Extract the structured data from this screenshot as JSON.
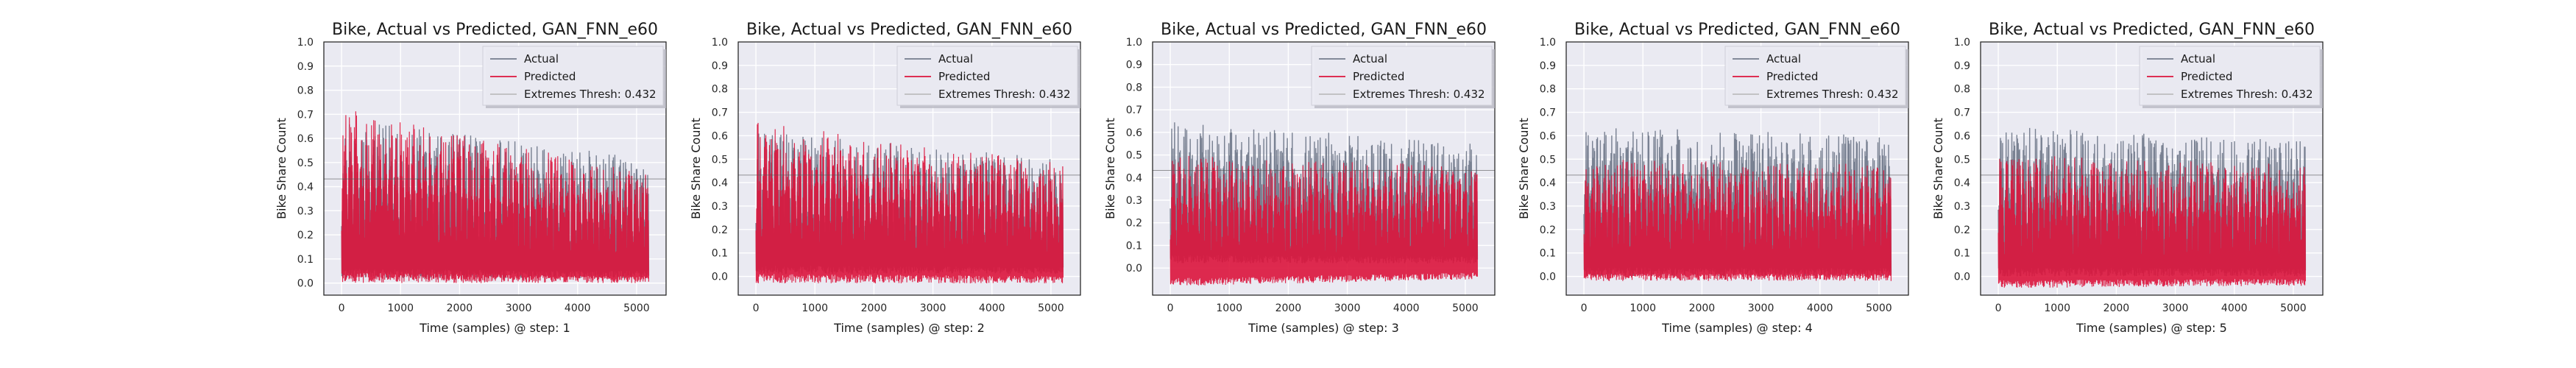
{
  "colors": {
    "actual": "#737b8c",
    "predicted": "#dc143c",
    "threshold": "#555555",
    "plot_bg": "#eaeaf2",
    "grid": "#ffffff"
  },
  "chart_data": [
    {
      "type": "line",
      "title": "Bike, Actual vs Predicted, GAN_FNN_e60",
      "xlabel": "Time (samples) @ step: 1",
      "ylabel": "Bike Share Count",
      "xlim": [
        -300,
        5500
      ],
      "ylim": [
        -0.05,
        1.0
      ],
      "xticks": [
        0,
        1000,
        2000,
        3000,
        4000,
        5000
      ],
      "yticks": [
        0.0,
        0.1,
        0.2,
        0.3,
        0.4,
        0.5,
        0.6,
        0.7,
        0.8,
        0.9,
        1.0
      ],
      "grid": true,
      "legend": "top-right",
      "legend_entries": [
        "Actual",
        "Predicted",
        "Extremes Thresh: 0.432"
      ],
      "threshold": 0.432,
      "series": [
        {
          "name": "Actual",
          "x": [
            0,
            5200
          ],
          "y_min": [
            0.02,
            0.02
          ],
          "y_max": [
            0.68,
            0.52
          ]
        },
        {
          "name": "Predicted",
          "x": [
            0,
            5200
          ],
          "y_min": [
            0.0,
            0.0
          ],
          "y_max": [
            0.73,
            0.45
          ]
        }
      ]
    },
    {
      "type": "line",
      "title": "Bike, Actual vs Predicted, GAN_FNN_e60",
      "xlabel": "Time (samples) @ step: 2",
      "ylabel": "Bike Share Count",
      "xlim": [
        -300,
        5500
      ],
      "ylim": [
        -0.08,
        1.0
      ],
      "xticks": [
        0,
        1000,
        2000,
        3000,
        4000,
        5000
      ],
      "yticks": [
        0.0,
        0.1,
        0.2,
        0.3,
        0.4,
        0.5,
        0.6,
        0.7,
        0.8,
        0.9,
        1.0
      ],
      "grid": true,
      "legend": "top-right",
      "legend_entries": [
        "Actual",
        "Predicted",
        "Extremes Thresh: 0.432"
      ],
      "threshold": 0.432,
      "series": [
        {
          "name": "Actual",
          "x": [
            0,
            5200
          ],
          "y_min": [
            0.01,
            0.01
          ],
          "y_max": [
            0.62,
            0.5
          ]
        },
        {
          "name": "Predicted",
          "x": [
            0,
            5200
          ],
          "y_min": [
            -0.03,
            -0.03
          ],
          "y_max": [
            0.66,
            0.48
          ]
        }
      ]
    },
    {
      "type": "line",
      "title": "Bike, Actual vs Predicted, GAN_FNN_e60",
      "xlabel": "Time (samples) @ step: 3",
      "ylabel": "Bike Share Count",
      "xlim": [
        -300,
        5500
      ],
      "ylim": [
        -0.12,
        1.0
      ],
      "xticks": [
        0,
        1000,
        2000,
        3000,
        4000,
        5000
      ],
      "yticks": [
        0.0,
        0.1,
        0.2,
        0.3,
        0.4,
        0.5,
        0.6,
        0.7,
        0.8,
        0.9,
        1.0
      ],
      "grid": true,
      "legend": "top-right",
      "legend_entries": [
        "Actual",
        "Predicted",
        "Extremes Thresh: 0.432"
      ],
      "threshold": 0.432,
      "series": [
        {
          "name": "Actual",
          "x": [
            0,
            5200
          ],
          "y_min": [
            0.02,
            0.02
          ],
          "y_max": [
            0.65,
            0.55
          ]
        },
        {
          "name": "Predicted",
          "x": [
            0,
            5200
          ],
          "y_min": [
            -0.08,
            -0.05
          ],
          "y_max": [
            0.5,
            0.45
          ]
        }
      ]
    },
    {
      "type": "line",
      "title": "Bike, Actual vs Predicted, GAN_FNN_e60",
      "xlabel": "Time (samples) @ step: 4",
      "ylabel": "Bike Share Count",
      "xlim": [
        -300,
        5500
      ],
      "ylim": [
        -0.08,
        1.0
      ],
      "xticks": [
        0,
        1000,
        2000,
        3000,
        4000,
        5000
      ],
      "yticks": [
        0.0,
        0.1,
        0.2,
        0.3,
        0.4,
        0.5,
        0.6,
        0.7,
        0.8,
        0.9,
        1.0
      ],
      "grid": true,
      "legend": "top-right",
      "legend_entries": [
        "Actual",
        "Predicted",
        "Extremes Thresh: 0.432"
      ],
      "threshold": 0.432,
      "series": [
        {
          "name": "Actual",
          "x": [
            0,
            5200
          ],
          "y_min": [
            0.0,
            0.0
          ],
          "y_max": [
            0.64,
            0.6
          ]
        },
        {
          "name": "Predicted",
          "x": [
            0,
            5200
          ],
          "y_min": [
            -0.02,
            -0.02
          ],
          "y_max": [
            0.5,
            0.48
          ]
        }
      ]
    },
    {
      "type": "line",
      "title": "Bike, Actual vs Predicted, GAN_FNN_e60",
      "xlabel": "Time (samples) @ step: 5",
      "ylabel": "Bike Share Count",
      "xlim": [
        -300,
        5500
      ],
      "ylim": [
        -0.08,
        1.0
      ],
      "xticks": [
        0,
        1000,
        2000,
        3000,
        4000,
        5000
      ],
      "yticks": [
        0.0,
        0.1,
        0.2,
        0.3,
        0.4,
        0.5,
        0.6,
        0.7,
        0.8,
        0.9,
        1.0
      ],
      "grid": true,
      "legend": "top-right",
      "legend_entries": [
        "Actual",
        "Predicted",
        "Extremes Thresh: 0.432"
      ],
      "threshold": 0.432,
      "series": [
        {
          "name": "Actual",
          "x": [
            0,
            5200
          ],
          "y_min": [
            0.0,
            0.0
          ],
          "y_max": [
            0.64,
            0.58
          ]
        },
        {
          "name": "Predicted",
          "x": [
            0,
            5200
          ],
          "y_min": [
            -0.05,
            -0.04
          ],
          "y_max": [
            0.52,
            0.48
          ]
        }
      ]
    }
  ]
}
